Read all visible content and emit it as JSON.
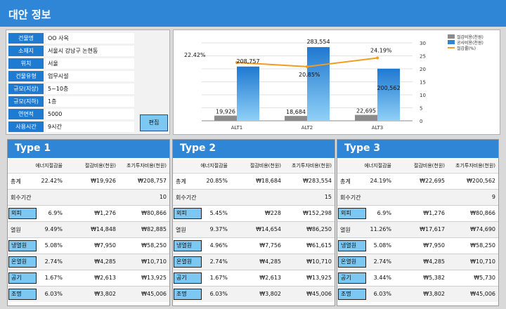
{
  "header": {
    "title": "대안 정보"
  },
  "info": {
    "rows": [
      {
        "label": "건물명",
        "value": "OO 사옥"
      },
      {
        "label": "소재지",
        "value": "서울시 강남구 논현동"
      },
      {
        "label": "위치",
        "value": "서울"
      },
      {
        "label": "건물유형",
        "value": "업무시설"
      },
      {
        "label": "규모(지상)",
        "value": "5~10층"
      },
      {
        "label": "규모(지하)",
        "value": "1층"
      },
      {
        "label": "연면적",
        "value": "5000"
      },
      {
        "label": "사용시간",
        "value": "9시간"
      }
    ],
    "edit_label": "편집"
  },
  "chart_data": {
    "type": "bar",
    "categories": [
      "ALT1",
      "ALT2",
      "ALT3"
    ],
    "series": [
      {
        "name": "절감비용(천원)",
        "type": "bar",
        "color": "#8c8c8c",
        "values": [
          19926,
          18684,
          22695
        ],
        "labels": [
          "19,926",
          "18,684",
          "22,695"
        ]
      },
      {
        "name": "공사비용(천원)",
        "type": "bar",
        "color": "#2f86d6",
        "values": [
          208757,
          283554,
          200562
        ],
        "labels": [
          "208,757",
          "283,554",
          "200,562"
        ]
      },
      {
        "name": "절감률(%)",
        "type": "line",
        "color": "#f39c1f",
        "values": [
          22.42,
          20.85,
          24.19
        ],
        "labels": [
          "22.42%",
          "20.85%",
          "24.19%"
        ]
      }
    ],
    "y_right_ticks": [
      "0",
      "5",
      "10",
      "15",
      "20",
      "25",
      "30"
    ],
    "y_right_range": [
      0,
      30
    ],
    "legend_position": "top-right"
  },
  "types": [
    {
      "title": "Type 1",
      "columns": [
        "에너지절감율",
        "절감비용(천원)",
        "초기투자비용(천원)"
      ],
      "total": {
        "label": "총계",
        "values": [
          "22.42%",
          "₩19,926",
          "₩208,757"
        ]
      },
      "payback": {
        "label": "회수기간",
        "value": "10"
      },
      "rows": [
        {
          "label": "외피",
          "boxed": true,
          "values": [
            "6.9%",
            "₩1,276",
            "₩80,866"
          ]
        },
        {
          "label": "열원",
          "boxed": false,
          "values": [
            "9.49%",
            "₩14,848",
            "₩82,885"
          ]
        },
        {
          "label": "냉열원",
          "boxed": true,
          "values": [
            "5.08%",
            "₩7,950",
            "₩58,250"
          ]
        },
        {
          "label": "온열원",
          "boxed": true,
          "values": [
            "2.74%",
            "₩4,285",
            "₩10,710"
          ]
        },
        {
          "label": "공기",
          "boxed": true,
          "values": [
            "1.67%",
            "₩2,613",
            "₩13,925"
          ]
        },
        {
          "label": "조명",
          "boxed": true,
          "values": [
            "6.03%",
            "₩3,802",
            "₩45,006"
          ]
        }
      ]
    },
    {
      "title": "Type 2",
      "columns": [
        "에너지절감율",
        "절감비용(천원)",
        "초기투자비용(천원)"
      ],
      "total": {
        "label": "총계",
        "values": [
          "20.85%",
          "₩18,684",
          "₩283,554"
        ]
      },
      "payback": {
        "label": "회수기간",
        "value": "15"
      },
      "rows": [
        {
          "label": "외피",
          "boxed": true,
          "values": [
            "5.45%",
            "₩228",
            "₩152,298"
          ]
        },
        {
          "label": "열원",
          "boxed": false,
          "values": [
            "9.37%",
            "₩14,654",
            "₩86,250"
          ]
        },
        {
          "label": "냉열원",
          "boxed": true,
          "values": [
            "4.96%",
            "₩7,756",
            "₩61,615"
          ]
        },
        {
          "label": "온열원",
          "boxed": true,
          "values": [
            "2.74%",
            "₩4,285",
            "₩10,710"
          ]
        },
        {
          "label": "공기",
          "boxed": true,
          "values": [
            "1.67%",
            "₩2,613",
            "₩13,925"
          ]
        },
        {
          "label": "조명",
          "boxed": true,
          "values": [
            "6.03%",
            "₩3,802",
            "₩45,006"
          ]
        }
      ]
    },
    {
      "title": "Type 3",
      "columns": [
        "에너지절감율",
        "절감비용(천원)",
        "초기투자비용(천원)"
      ],
      "total": {
        "label": "총계",
        "values": [
          "24.19%",
          "₩22,695",
          "₩200,562"
        ]
      },
      "payback": {
        "label": "회수기간",
        "value": "9"
      },
      "rows": [
        {
          "label": "외피",
          "boxed": true,
          "values": [
            "6.9%",
            "₩1,276",
            "₩80,866"
          ]
        },
        {
          "label": "열원",
          "boxed": false,
          "values": [
            "11.26%",
            "₩17,617",
            "₩74,690"
          ]
        },
        {
          "label": "냉열원",
          "boxed": true,
          "values": [
            "5.08%",
            "₩7,950",
            "₩58,250"
          ]
        },
        {
          "label": "온열원",
          "boxed": true,
          "values": [
            "2.74%",
            "₩4,285",
            "₩10,710"
          ]
        },
        {
          "label": "공기",
          "boxed": true,
          "values": [
            "3.44%",
            "₩5,382",
            "₩5,730"
          ]
        },
        {
          "label": "조명",
          "boxed": true,
          "values": [
            "6.03%",
            "₩3,802",
            "₩45,006"
          ]
        }
      ]
    }
  ]
}
